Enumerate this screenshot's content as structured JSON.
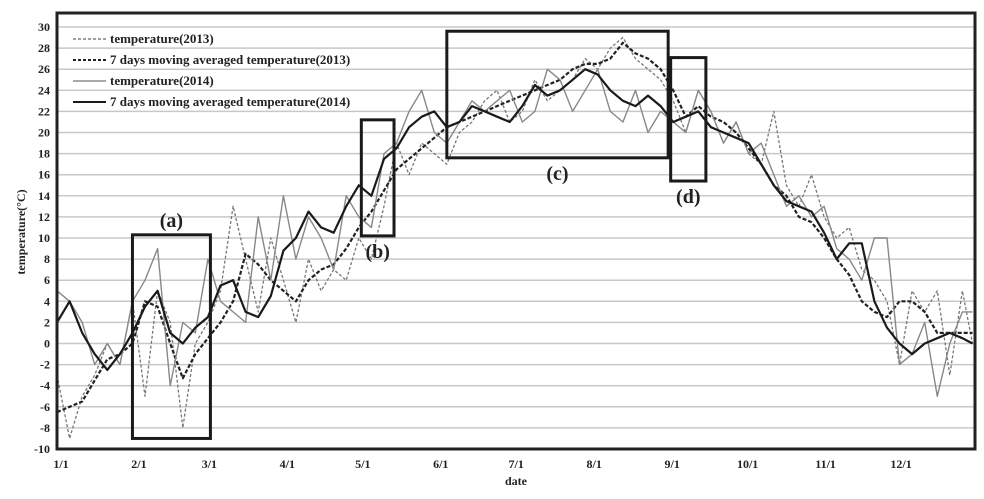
{
  "chart_data": {
    "type": "line",
    "title": "",
    "xlabel": "date",
    "ylabel": "temperature(°C)",
    "ylim": [
      -10,
      30
    ],
    "yticks": [
      -10,
      -8,
      -6,
      -4,
      -2,
      0,
      2,
      4,
      6,
      8,
      10,
      12,
      14,
      16,
      18,
      20,
      22,
      24,
      26,
      28,
      30
    ],
    "xticks": [
      {
        "label": "1/1",
        "day": 0
      },
      {
        "label": "2/1",
        "day": 31
      },
      {
        "label": "3/1",
        "day": 59
      },
      {
        "label": "4/1",
        "day": 90
      },
      {
        "label": "5/1",
        "day": 120
      },
      {
        "label": "6/1",
        "day": 151
      },
      {
        "label": "7/1",
        "day": 181
      },
      {
        "label": "8/1",
        "day": 212
      },
      {
        "label": "9/1",
        "day": 243
      },
      {
        "label": "10/1",
        "day": 273
      },
      {
        "label": "11/1",
        "day": 304
      },
      {
        "label": "12/1",
        "day": 334
      }
    ],
    "grid": true,
    "legend_position": "upper-left",
    "x_day_sample": [
      0,
      5,
      10,
      15,
      20,
      25,
      30,
      35,
      40,
      45,
      50,
      55,
      60,
      65,
      70,
      75,
      80,
      85,
      90,
      95,
      100,
      105,
      110,
      115,
      120,
      125,
      130,
      135,
      140,
      145,
      150,
      155,
      160,
      165,
      170,
      175,
      180,
      185,
      190,
      195,
      200,
      205,
      210,
      215,
      220,
      225,
      230,
      235,
      240,
      245,
      250,
      255,
      260,
      265,
      270,
      275,
      280,
      285,
      290,
      295,
      300,
      305,
      310,
      315,
      320,
      325,
      330,
      335,
      340,
      345,
      350,
      355,
      360,
      364
    ],
    "series": [
      {
        "name": "temperature(2013)",
        "style": "dashed-thin",
        "color": "#777777",
        "values": [
          -3,
          -9,
          -5,
          -3,
          0,
          -2,
          4,
          -5,
          5,
          2,
          -8,
          0,
          2,
          5,
          13,
          8,
          3,
          10,
          6,
          2,
          8,
          5,
          7,
          6,
          10,
          8,
          13,
          19,
          16,
          19,
          18,
          17,
          20,
          21,
          23,
          24,
          21,
          22,
          25,
          23,
          24,
          25,
          27,
          26,
          28,
          29,
          27,
          26,
          25,
          23,
          20,
          24,
          22,
          19,
          21,
          18,
          17,
          22,
          15,
          13,
          16,
          12,
          10,
          11,
          7,
          6,
          4,
          -2,
          5,
          3,
          5,
          -3,
          5,
          0
        ]
      },
      {
        "name": "7 days moving averaged temperature(2013)",
        "style": "dashed-thick",
        "color": "#222222",
        "values": [
          -6.5,
          -6,
          -5.5,
          -3.5,
          -1.5,
          -1,
          0,
          4,
          3.5,
          0,
          -3.3,
          -1,
          0.5,
          2,
          4,
          8.5,
          7.5,
          6,
          5,
          4,
          6,
          7,
          7.5,
          9,
          11,
          12.5,
          14.5,
          16.5,
          17.5,
          18.5,
          19.5,
          20.5,
          21,
          21.5,
          22,
          22.5,
          23,
          23.5,
          24,
          24.5,
          25,
          26,
          26.5,
          26.5,
          27,
          28.5,
          27.5,
          27,
          26,
          24,
          21.5,
          22.5,
          21.5,
          21,
          20,
          18.5,
          17,
          15,
          14,
          12,
          11.5,
          10,
          8,
          6.5,
          4,
          3,
          2.5,
          4,
          4,
          3,
          1,
          1,
          1,
          1
        ]
      },
      {
        "name": "temperature(2014)",
        "style": "solid-thin",
        "color": "#888888",
        "values": [
          5,
          4,
          2,
          -2,
          0,
          -2,
          4,
          6,
          9,
          -4,
          2,
          1,
          8,
          4,
          3,
          2,
          12,
          6,
          14,
          8,
          12,
          10,
          7,
          14,
          12,
          11,
          18,
          19,
          22,
          24,
          20,
          19,
          21,
          23,
          22,
          23,
          24,
          21,
          22,
          26,
          25,
          22,
          24,
          26,
          22,
          21,
          24,
          20,
          22,
          21,
          20,
          24,
          22,
          19,
          21,
          18,
          19,
          16,
          13,
          14,
          12,
          13,
          9,
          8,
          6,
          10,
          10,
          -2,
          -1,
          2,
          -5,
          0,
          3,
          3
        ]
      },
      {
        "name": "7 days moving averaged temperature(2014)",
        "style": "solid-thick",
        "color": "#1a1a1a",
        "values": [
          2,
          4,
          1,
          -1,
          -2.5,
          -1,
          1,
          3.5,
          5,
          1,
          0,
          1.5,
          2.5,
          5.5,
          6,
          3,
          2.5,
          4.5,
          8.8,
          10,
          12.5,
          11,
          10.5,
          13,
          15,
          14,
          17.5,
          18.5,
          20.5,
          21.5,
          22,
          20.5,
          21,
          22.5,
          22,
          21.5,
          21,
          22.5,
          24.5,
          23.5,
          24,
          25,
          26,
          25.5,
          24,
          23,
          22.5,
          23.5,
          22.5,
          21,
          21.5,
          22,
          20.5,
          20,
          19.5,
          19,
          17,
          15,
          13.5,
          13,
          12.5,
          10.5,
          8,
          9.5,
          9.5,
          4,
          1.5,
          0,
          -1,
          0,
          0.5,
          1,
          0.5,
          0
        ]
      }
    ],
    "annotations": [
      {
        "label": "(a)",
        "x_day_start": 30,
        "x_day_end": 61,
        "y_low": -9,
        "y_high": 10.3
      },
      {
        "label": "(b)",
        "x_day_start": 121,
        "x_day_end": 134,
        "y_low": 10.2,
        "y_high": 21.2
      },
      {
        "label": "(c)",
        "x_day_start": 155,
        "x_day_end": 243,
        "y_low": 17.6,
        "y_high": 29.6
      },
      {
        "label": "(d)",
        "x_day_start": 244,
        "x_day_end": 258,
        "y_low": 15.4,
        "y_high": 27.1
      }
    ]
  },
  "legend": {
    "items": [
      {
        "label": "temperature(2013)"
      },
      {
        "label": "7 days moving averaged temperature(2013)"
      },
      {
        "label": "temperature(2014)"
      },
      {
        "label": "7 days moving averaged temperature(2014)"
      }
    ]
  },
  "axes": {
    "xlabel": "date",
    "ylabel": "temperature(°C)"
  }
}
